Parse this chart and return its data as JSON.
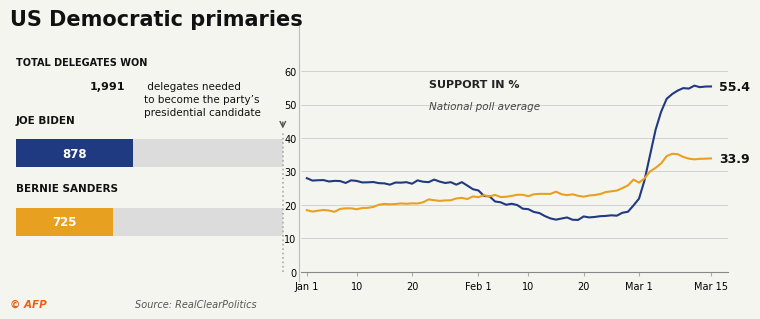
{
  "title": "US Democratic primaries",
  "left_panel": {
    "section_title": "Total delegates won",
    "note_bold": "1,991",
    "note_rest": " delegates needed\nto become the party’s\npresidential candidate",
    "biden_label": "Joe Biden",
    "biden_value": 878,
    "biden_color": "#1f3a80",
    "sanders_label": "Bernie Sanders",
    "sanders_value": 725,
    "sanders_color": "#e8a020",
    "max_delegates": 1991,
    "bar_bg_color": "#dcdcdc"
  },
  "right_panel": {
    "label1": "Support in %",
    "label2": "National poll average",
    "biden_end": 55.4,
    "sanders_end": 33.9,
    "biden_line_color": "#1f3a80",
    "sanders_line_color": "#e8a020",
    "ylim": [
      0,
      60
    ],
    "yticks": [
      0,
      10,
      20,
      30,
      40,
      50,
      60
    ],
    "xtick_labels": [
      "Jan 1",
      "10",
      "20",
      "Feb 1",
      "10",
      "20",
      "Mar 1",
      "Mar 15"
    ],
    "xtick_positions": [
      0,
      9,
      19,
      31,
      40,
      50,
      60,
      73
    ]
  },
  "footer_left": "© AFP",
  "footer_right": "Source: RealClearPolitics",
  "background_color": "#f5f5f0",
  "plot_bg_color": "#f5f5f0"
}
